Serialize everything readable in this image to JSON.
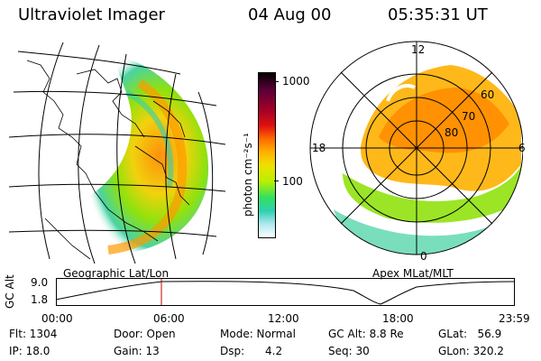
{
  "header": {
    "instrument": "Ultraviolet Imager",
    "date": "04 Aug 00",
    "time": "05:35:31 UT"
  },
  "left_panel": {
    "caption": "Geographic Lat/Lon"
  },
  "right_panel": {
    "caption": "Apex MLat/MLT",
    "mlt_labels": {
      "top": "12",
      "left": "18",
      "right": "6",
      "bottom": "0"
    },
    "lat_labels": [
      "60",
      "70",
      "80"
    ]
  },
  "colorbar": {
    "unit_label": "photon cm⁻²s⁻¹",
    "ticks": [
      "1000",
      "100"
    ],
    "colors": [
      "#000000",
      "#5a0038",
      "#a00028",
      "#e01010",
      "#ff6a00",
      "#ffb000",
      "#f0e000",
      "#b8f000",
      "#30e060",
      "#30d0b0",
      "#b0e8f0",
      "#ffffff"
    ]
  },
  "altitude_strip": {
    "ylabel": "GC Alt",
    "yticks": [
      "9.0",
      "1.8"
    ],
    "xticks": [
      "00:00",
      "06:00",
      "12:00",
      "18:00",
      "23:59"
    ],
    "marker_color": "#c00000"
  },
  "info": {
    "flt": "Flt: 1304",
    "ip": "IP: 18.0",
    "door": "Door: Open",
    "gain": "Gain: 13",
    "mode": "Mode: Normal",
    "dsp": "Dsp:      4.2",
    "gcalt": "GC Alt: 8.8 Re",
    "seq": "Seq: 30",
    "glat": "GLat:   56.9",
    "glon": "GLon: 320.2"
  }
}
